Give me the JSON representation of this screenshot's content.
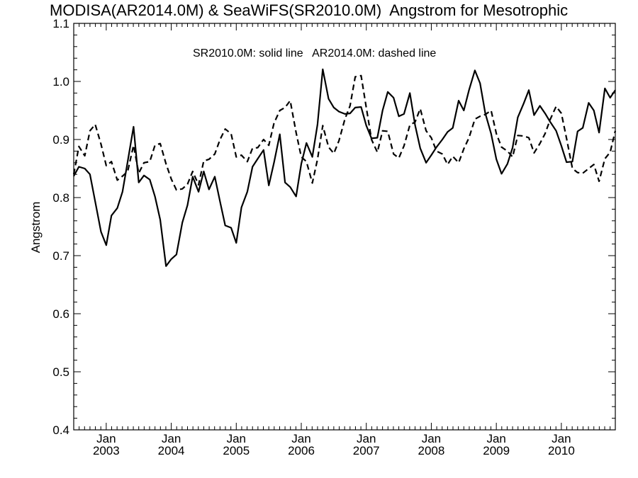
{
  "chart_data": {
    "type": "line",
    "title": "MODISA(AR2014.0M) & SeaWiFS(SR2010.0M)  Angstrom for Mesotrophic",
    "xlabel": "",
    "ylabel": "Angstrom",
    "annotation": "SR2010.0M: solid line   AR2014.0M: dashed line",
    "xlim": [
      2002.5,
      2010.83
    ],
    "ylim": [
      0.4,
      1.1
    ],
    "grid": false,
    "y_ticks": [
      0.4,
      0.5,
      0.6,
      0.7,
      0.8,
      0.9,
      1.0,
      1.1
    ],
    "y_tick_labels": [
      "0.4",
      "0.5",
      "0.6",
      "0.7",
      "0.8",
      "0.9",
      "1.0",
      "1.1"
    ],
    "x_ticks": [
      {
        "x": 2003.0,
        "month": "Jan",
        "year": "2003"
      },
      {
        "x": 2004.0,
        "month": "Jan",
        "year": "2004"
      },
      {
        "x": 2005.0,
        "month": "Jan",
        "year": "2005"
      },
      {
        "x": 2006.0,
        "month": "Jan",
        "year": "2006"
      },
      {
        "x": 2007.0,
        "month": "Jan",
        "year": "2007"
      },
      {
        "x": 2008.0,
        "month": "Jan",
        "year": "2008"
      },
      {
        "x": 2009.0,
        "month": "Jan",
        "year": "2009"
      },
      {
        "x": 2010.0,
        "month": "Jan",
        "year": "2010"
      }
    ],
    "series": [
      {
        "style": "solid",
        "points": [
          [
            2002.5,
            0.837
          ],
          [
            2002.58,
            0.853
          ],
          [
            2002.67,
            0.85
          ],
          [
            2002.75,
            0.84
          ],
          [
            2002.83,
            0.793
          ],
          [
            2002.92,
            0.741
          ],
          [
            2003.0,
            0.718
          ],
          [
            2003.08,
            0.769
          ],
          [
            2003.17,
            0.782
          ],
          [
            2003.25,
            0.81
          ],
          [
            2003.33,
            0.862
          ],
          [
            2003.42,
            0.922
          ],
          [
            2003.5,
            0.826
          ],
          [
            2003.58,
            0.838
          ],
          [
            2003.67,
            0.831
          ],
          [
            2003.75,
            0.802
          ],
          [
            2003.83,
            0.762
          ],
          [
            2003.92,
            0.682
          ],
          [
            2004.0,
            0.694
          ],
          [
            2004.08,
            0.702
          ],
          [
            2004.17,
            0.757
          ],
          [
            2004.25,
            0.787
          ],
          [
            2004.33,
            0.836
          ],
          [
            2004.42,
            0.81
          ],
          [
            2004.5,
            0.845
          ],
          [
            2004.58,
            0.814
          ],
          [
            2004.67,
            0.836
          ],
          [
            2004.75,
            0.793
          ],
          [
            2004.83,
            0.752
          ],
          [
            2004.92,
            0.748
          ],
          [
            2005.0,
            0.722
          ],
          [
            2005.08,
            0.783
          ],
          [
            2005.17,
            0.81
          ],
          [
            2005.25,
            0.853
          ],
          [
            2005.33,
            0.867
          ],
          [
            2005.42,
            0.882
          ],
          [
            2005.5,
            0.821
          ],
          [
            2005.58,
            0.86
          ],
          [
            2005.67,
            0.909
          ],
          [
            2005.75,
            0.826
          ],
          [
            2005.83,
            0.818
          ],
          [
            2005.92,
            0.802
          ],
          [
            2006.0,
            0.858
          ],
          [
            2006.08,
            0.894
          ],
          [
            2006.17,
            0.87
          ],
          [
            2006.25,
            0.926
          ],
          [
            2006.33,
            1.021
          ],
          [
            2006.42,
            0.97
          ],
          [
            2006.5,
            0.955
          ],
          [
            2006.58,
            0.948
          ],
          [
            2006.67,
            0.944
          ],
          [
            2006.75,
            0.945
          ],
          [
            2006.83,
            0.955
          ],
          [
            2006.92,
            0.956
          ],
          [
            2007.0,
            0.924
          ],
          [
            2007.08,
            0.902
          ],
          [
            2007.17,
            0.903
          ],
          [
            2007.25,
            0.95
          ],
          [
            2007.33,
            0.982
          ],
          [
            2007.42,
            0.972
          ],
          [
            2007.5,
            0.94
          ],
          [
            2007.58,
            0.944
          ],
          [
            2007.67,
            0.98
          ],
          [
            2007.75,
            0.925
          ],
          [
            2007.83,
            0.885
          ],
          [
            2007.92,
            0.86
          ],
          [
            2008.0,
            0.873
          ],
          [
            2008.08,
            0.887
          ],
          [
            2008.17,
            0.9
          ],
          [
            2008.25,
            0.913
          ],
          [
            2008.33,
            0.92
          ],
          [
            2008.42,
            0.967
          ],
          [
            2008.5,
            0.95
          ],
          [
            2008.58,
            0.985
          ],
          [
            2008.67,
            1.019
          ],
          [
            2008.75,
            0.997
          ],
          [
            2008.83,
            0.945
          ],
          [
            2008.92,
            0.91
          ],
          [
            2009.0,
            0.866
          ],
          [
            2009.08,
            0.841
          ],
          [
            2009.17,
            0.858
          ],
          [
            2009.25,
            0.886
          ],
          [
            2009.33,
            0.938
          ],
          [
            2009.42,
            0.962
          ],
          [
            2009.5,
            0.985
          ],
          [
            2009.58,
            0.942
          ],
          [
            2009.67,
            0.958
          ],
          [
            2009.75,
            0.945
          ],
          [
            2009.83,
            0.93
          ],
          [
            2009.92,
            0.915
          ],
          [
            2010.0,
            0.889
          ],
          [
            2010.08,
            0.861
          ],
          [
            2010.17,
            0.862
          ],
          [
            2010.25,
            0.914
          ],
          [
            2010.33,
            0.92
          ],
          [
            2010.42,
            0.963
          ],
          [
            2010.5,
            0.95
          ],
          [
            2010.58,
            0.912
          ],
          [
            2010.67,
            0.988
          ],
          [
            2010.75,
            0.972
          ],
          [
            2010.83,
            0.985
          ]
        ]
      },
      {
        "style": "dashed",
        "points": [
          [
            2002.5,
            0.84
          ],
          [
            2002.58,
            0.888
          ],
          [
            2002.67,
            0.872
          ],
          [
            2002.75,
            0.915
          ],
          [
            2002.83,
            0.926
          ],
          [
            2002.92,
            0.892
          ],
          [
            2003.0,
            0.855
          ],
          [
            2003.08,
            0.862
          ],
          [
            2003.17,
            0.83
          ],
          [
            2003.25,
            0.837
          ],
          [
            2003.33,
            0.845
          ],
          [
            2003.42,
            0.89
          ],
          [
            2003.5,
            0.842
          ],
          [
            2003.58,
            0.86
          ],
          [
            2003.67,
            0.862
          ],
          [
            2003.75,
            0.89
          ],
          [
            2003.83,
            0.893
          ],
          [
            2003.92,
            0.858
          ],
          [
            2004.0,
            0.832
          ],
          [
            2004.08,
            0.813
          ],
          [
            2004.17,
            0.815
          ],
          [
            2004.25,
            0.823
          ],
          [
            2004.33,
            0.845
          ],
          [
            2004.42,
            0.822
          ],
          [
            2004.5,
            0.863
          ],
          [
            2004.58,
            0.866
          ],
          [
            2004.67,
            0.875
          ],
          [
            2004.75,
            0.9
          ],
          [
            2004.83,
            0.918
          ],
          [
            2004.92,
            0.91
          ],
          [
            2005.0,
            0.87
          ],
          [
            2005.08,
            0.873
          ],
          [
            2005.17,
            0.862
          ],
          [
            2005.25,
            0.885
          ],
          [
            2005.33,
            0.886
          ],
          [
            2005.42,
            0.9
          ],
          [
            2005.5,
            0.89
          ],
          [
            2005.58,
            0.928
          ],
          [
            2005.67,
            0.95
          ],
          [
            2005.75,
            0.955
          ],
          [
            2005.83,
            0.967
          ],
          [
            2005.92,
            0.912
          ],
          [
            2006.0,
            0.87
          ],
          [
            2006.08,
            0.862
          ],
          [
            2006.17,
            0.825
          ],
          [
            2006.25,
            0.866
          ],
          [
            2006.33,
            0.924
          ],
          [
            2006.42,
            0.887
          ],
          [
            2006.5,
            0.876
          ],
          [
            2006.58,
            0.898
          ],
          [
            2006.67,
            0.935
          ],
          [
            2006.75,
            0.958
          ],
          [
            2006.83,
            1.008
          ],
          [
            2006.92,
            1.01
          ],
          [
            2007.0,
            0.955
          ],
          [
            2007.08,
            0.9
          ],
          [
            2007.17,
            0.878
          ],
          [
            2007.25,
            0.915
          ],
          [
            2007.33,
            0.914
          ],
          [
            2007.42,
            0.875
          ],
          [
            2007.5,
            0.868
          ],
          [
            2007.58,
            0.889
          ],
          [
            2007.67,
            0.925
          ],
          [
            2007.75,
            0.93
          ],
          [
            2007.83,
            0.953
          ],
          [
            2007.92,
            0.915
          ],
          [
            2008.0,
            0.903
          ],
          [
            2008.08,
            0.88
          ],
          [
            2008.17,
            0.875
          ],
          [
            2008.25,
            0.857
          ],
          [
            2008.33,
            0.871
          ],
          [
            2008.42,
            0.86
          ],
          [
            2008.5,
            0.884
          ],
          [
            2008.58,
            0.903
          ],
          [
            2008.67,
            0.935
          ],
          [
            2008.75,
            0.94
          ],
          [
            2008.83,
            0.943
          ],
          [
            2008.92,
            0.95
          ],
          [
            2009.0,
            0.91
          ],
          [
            2009.08,
            0.887
          ],
          [
            2009.17,
            0.88
          ],
          [
            2009.25,
            0.87
          ],
          [
            2009.33,
            0.907
          ],
          [
            2009.42,
            0.906
          ],
          [
            2009.5,
            0.903
          ],
          [
            2009.58,
            0.877
          ],
          [
            2009.67,
            0.893
          ],
          [
            2009.75,
            0.91
          ],
          [
            2009.83,
            0.935
          ],
          [
            2009.92,
            0.957
          ],
          [
            2010.0,
            0.945
          ],
          [
            2010.08,
            0.902
          ],
          [
            2010.17,
            0.85
          ],
          [
            2010.25,
            0.843
          ],
          [
            2010.33,
            0.842
          ],
          [
            2010.42,
            0.85
          ],
          [
            2010.5,
            0.857
          ],
          [
            2010.58,
            0.828
          ],
          [
            2010.67,
            0.867
          ],
          [
            2010.75,
            0.878
          ],
          [
            2010.83,
            0.915
          ]
        ]
      }
    ]
  }
}
